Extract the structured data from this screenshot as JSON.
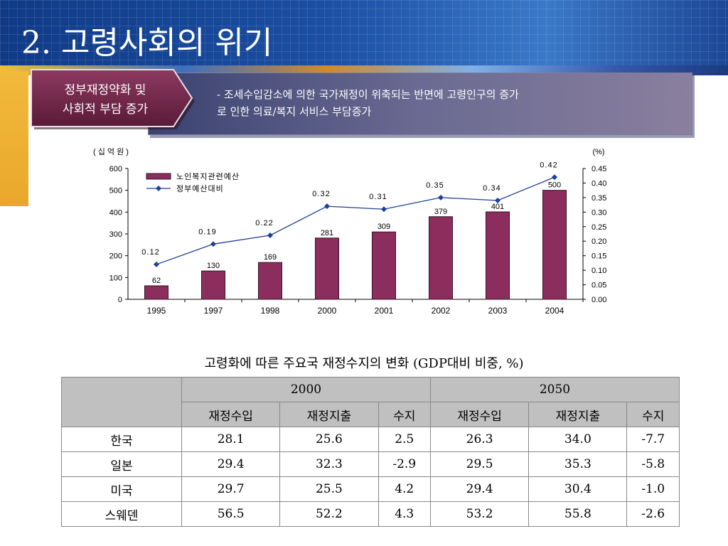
{
  "slide": {
    "title": "2. 고령사회의 위기"
  },
  "label_box": {
    "line1": "정부재정약화 및",
    "line2": "사회적 부담 증가"
  },
  "description": {
    "text": "- 조세수입감소에 의한 국가재정이 위축되는 반면에 고령인구의 증가\n  로 인한 의료/복지 서비스 부담증가"
  },
  "chart_data": {
    "type": "bar",
    "categories": [
      "1995",
      "1997",
      "1998",
      "2000",
      "2001",
      "2002",
      "2003",
      "2004"
    ],
    "series": [
      {
        "name": "노인복지관련예산",
        "type": "bar",
        "axis": "left",
        "values": [
          62,
          130,
          169,
          281,
          309,
          379,
          401,
          500
        ],
        "color": "#8b2e5e"
      },
      {
        "name": "정부예산대비",
        "type": "line",
        "axis": "right",
        "values": [
          0.12,
          0.19,
          0.22,
          0.32,
          0.31,
          0.35,
          0.34,
          0.42
        ],
        "color": "#1f3f9a"
      }
    ],
    "bar_labels": [
      "62",
      "130",
      "169",
      "281",
      "309",
      "379",
      "401",
      "500"
    ],
    "line_labels": [
      "0.12",
      "0.19",
      "0.22",
      "0.32",
      "0.31",
      "0.35",
      "0.34",
      "0.42"
    ],
    "ylabel": "( 십 억 원 )",
    "ylabel_right": "(%)",
    "ylim": [
      0,
      600
    ],
    "ylim_right": [
      0,
      0.45
    ],
    "left_ticks": [
      "0",
      "100",
      "200",
      "300",
      "400",
      "500",
      "600"
    ],
    "right_ticks": [
      "0.00",
      "0.05",
      "0.10",
      "0.15",
      "0.20",
      "0.25",
      "0.30",
      "0.35",
      "0.40",
      "0.45"
    ],
    "legend_position": "top-left",
    "grid": false
  },
  "table": {
    "caption": "고령화에 따른 주요국 재정수지의 변화 (GDP대비 비중, %)",
    "year_headers": [
      "2000",
      "2050"
    ],
    "sub_headers": [
      "재정수입",
      "재정지출",
      "수지",
      "재정수입",
      "재정지출",
      "수지"
    ],
    "rows": [
      {
        "country": "한국",
        "values": [
          "28.1",
          "25.6",
          "2.5",
          "26.3",
          "34.0",
          "-7.7"
        ]
      },
      {
        "country": "일본",
        "values": [
          "29.4",
          "32.3",
          "-2.9",
          "29.5",
          "35.3",
          "-5.8"
        ]
      },
      {
        "country": "미국",
        "values": [
          "29.7",
          "25.5",
          "4.2",
          "29.4",
          "30.4",
          "-1.0"
        ]
      },
      {
        "country": "스웨덴",
        "values": [
          "56.5",
          "52.2",
          "4.3",
          "53.2",
          "55.8",
          "-2.6"
        ]
      }
    ]
  }
}
